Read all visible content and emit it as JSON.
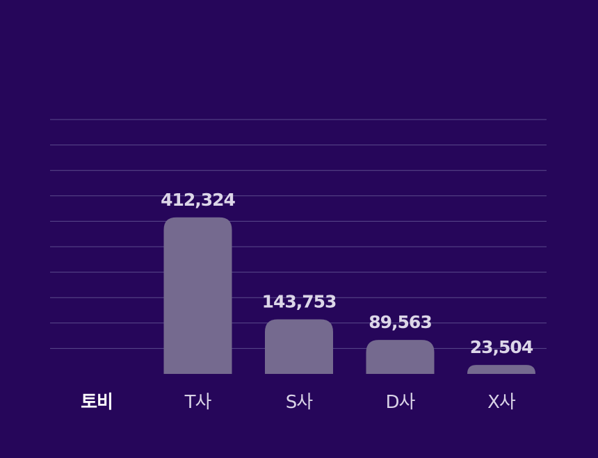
{
  "chart_data": {
    "type": "bar",
    "title": "",
    "xlabel": "",
    "ylabel": "",
    "categories": [
      "토비",
      "T사",
      "S사",
      "D사",
      "X사"
    ],
    "values": [
      null,
      412324,
      143753,
      89563,
      23504
    ],
    "value_labels": [
      "",
      "412,324",
      "143,753",
      "89,563",
      "23,504"
    ],
    "highlight_category": "토비",
    "ylim": [
      0,
      670000
    ],
    "gridlines": 10,
    "grid": true,
    "legend": "none",
    "colors": {
      "background": "#26065a",
      "bar": "#756a8f",
      "gridline": "#5b4b8c",
      "baseline": "#ffffff",
      "value_label": "#dcd6e8",
      "category_label": "#d8d2e6",
      "highlight_label": "#ffffff"
    }
  }
}
